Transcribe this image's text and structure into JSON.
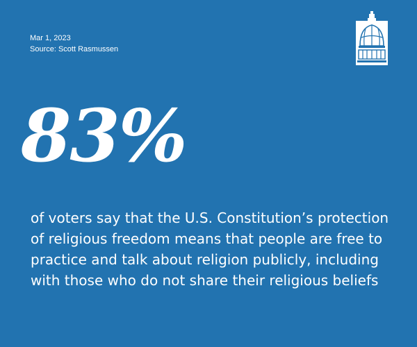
{
  "meta": {
    "date": "Mar 1, 2023",
    "source": "Source: Scott Rasmussen"
  },
  "stat": {
    "value": "83%",
    "statement": "of voters say that the U.S. Constitution’s protection of religious freedom means that people are free to practice and talk about religion publicly, including with those who do not share their religious beliefs"
  },
  "logo": {
    "icon": "capitol-dome-icon"
  },
  "colors": {
    "background": "#2273b0",
    "text": "#ffffff"
  }
}
